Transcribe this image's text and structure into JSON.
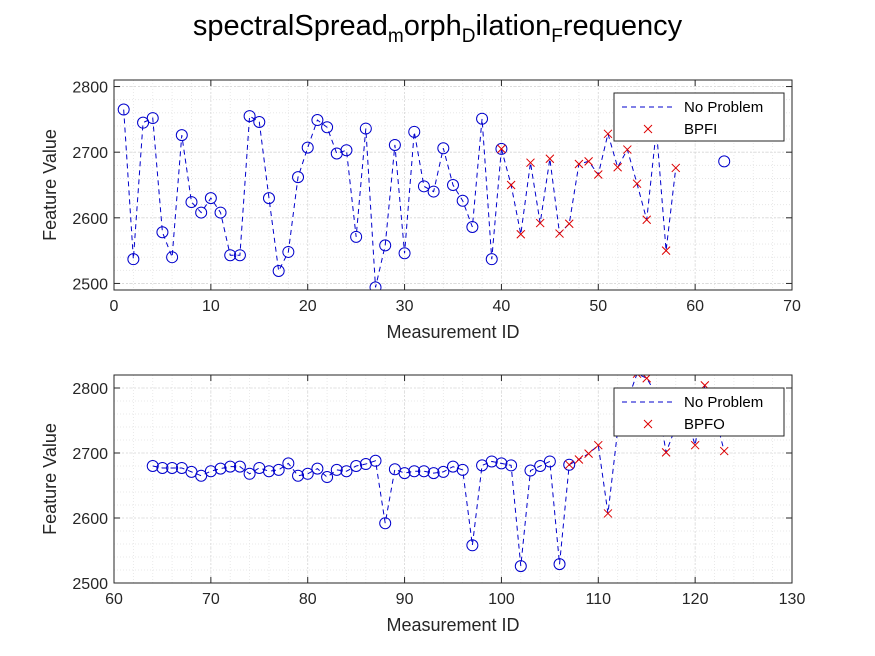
{
  "figure": {
    "title_parts": [
      {
        "text": "spectralSpread",
        "sub": false
      },
      {
        "text": "m",
        "sub": true
      },
      {
        "text": "orph",
        "sub": false
      },
      {
        "text": "D",
        "sub": true
      },
      {
        "text": "ilation",
        "sub": false
      },
      {
        "text": "F",
        "sub": true
      },
      {
        "text": "requency",
        "sub": false
      }
    ],
    "colors": {
      "no_problem": "#0000cc",
      "fault": "#dd0000",
      "grid": "#d8d8d8",
      "axes": "#262626"
    }
  },
  "chart_data": [
    {
      "type": "line",
      "xlabel": "Measurement ID",
      "ylabel": "Feature Value",
      "xlim": [
        0,
        70
      ],
      "ylim": [
        2490,
        2810
      ],
      "xticks": [
        0,
        10,
        20,
        30,
        40,
        50,
        60,
        70
      ],
      "yticks": [
        2500,
        2600,
        2700,
        2800
      ],
      "grid": true,
      "minor_grid": true,
      "legend_location": "top-right",
      "series": [
        {
          "name": "No Problem",
          "style": "dashed-line-circle-markers",
          "x": [
            1,
            2,
            3,
            4,
            5,
            6,
            7,
            8,
            9,
            10,
            11,
            12,
            13,
            14,
            15,
            16,
            17,
            18,
            19,
            20,
            21,
            22,
            23,
            24,
            25,
            26,
            27,
            28,
            29,
            30,
            31,
            32,
            33,
            34,
            35,
            36,
            37,
            38,
            39,
            40,
            63
          ],
          "y": [
            2765,
            2537,
            2745,
            2752,
            2578,
            2540,
            2726,
            2624,
            2608,
            2630,
            2608,
            2543,
            2543,
            2755,
            2746,
            2630,
            2519,
            2548,
            2662,
            2707,
            2749,
            2738,
            2698,
            2703,
            2571,
            2736,
            2494,
            2558,
            2711,
            2546,
            2731,
            2648,
            2640,
            2706,
            2650,
            2626,
            2586,
            2751,
            2537,
            2705,
            2686
          ]
        },
        {
          "name": "BPFI",
          "style": "x-markers-dashed-line",
          "x": [
            40,
            41,
            42,
            43,
            44,
            45,
            46,
            47,
            48,
            49,
            50,
            51,
            52,
            53,
            54,
            55,
            56,
            57,
            58
          ],
          "y": [
            2705,
            2650,
            2575,
            2684,
            2592,
            2690,
            2576,
            2591,
            2682,
            2686,
            2666,
            2728,
            2677,
            2704,
            2652,
            2597,
            2735,
            2550,
            2676
          ]
        }
      ]
    },
    {
      "type": "line",
      "xlabel": "Measurement ID",
      "ylabel": "Feature Value",
      "xlim": [
        60,
        130
      ],
      "ylim": [
        2500,
        2820
      ],
      "xticks": [
        60,
        70,
        80,
        90,
        100,
        110,
        120,
        130
      ],
      "yticks": [
        2500,
        2600,
        2700,
        2800
      ],
      "grid": true,
      "minor_grid": true,
      "legend_location": "top-right",
      "series": [
        {
          "name": "No Problem",
          "style": "dashed-line-circle-markers",
          "x": [
            64,
            65,
            66,
            67,
            68,
            69,
            70,
            71,
            72,
            73,
            74,
            75,
            76,
            77,
            78,
            79,
            80,
            81,
            82,
            83,
            84,
            85,
            86,
            87,
            88,
            89,
            90,
            91,
            92,
            93,
            94,
            95,
            96,
            97,
            98,
            99,
            100,
            101,
            102,
            103,
            104,
            105,
            106,
            107
          ],
          "y": [
            2680,
            2677,
            2677,
            2677,
            2671,
            2665,
            2672,
            2676,
            2679,
            2679,
            2668,
            2677,
            2672,
            2674,
            2684,
            2665,
            2668,
            2676,
            2663,
            2674,
            2672,
            2680,
            2683,
            2688,
            2592,
            2675,
            2669,
            2672,
            2672,
            2669,
            2671,
            2679,
            2674,
            2558,
            2681,
            2687,
            2684,
            2681,
            2526,
            2673,
            2680,
            2687,
            2529,
            2682
          ]
        },
        {
          "name": "BPFO",
          "style": "x-markers-dashed-line",
          "x": [
            107,
            108,
            109,
            110,
            111,
            112,
            113,
            114,
            115,
            116,
            117,
            118,
            119,
            120,
            121,
            122,
            123
          ],
          "y": [
            2682,
            2690,
            2699,
            2712,
            2607,
            2735,
            2780,
            2822,
            2815,
            2790,
            2701,
            2740,
            2760,
            2712,
            2804,
            2760,
            2703
          ]
        }
      ]
    }
  ]
}
